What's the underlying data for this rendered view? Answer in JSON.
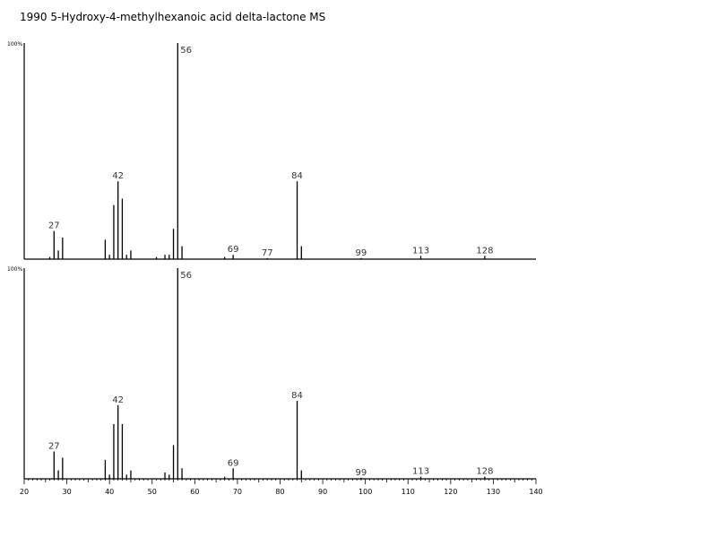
{
  "title": "1990 5-Hydroxy-4-methylhexanoic acid delta-lactone MS",
  "chart_data": [
    {
      "type": "bar",
      "name": "upper-spectrum",
      "ylabel": "100%",
      "xlim": [
        20,
        140
      ],
      "ylim": [
        0,
        100
      ],
      "x_ticks": [
        "20",
        "30",
        "40",
        "50",
        "60",
        "70",
        "80",
        "90",
        "100",
        "110",
        "120",
        "130",
        "140"
      ],
      "peaks": [
        {
          "x": 26,
          "y": 1
        },
        {
          "x": 27,
          "y": 13,
          "label": "27"
        },
        {
          "x": 28,
          "y": 4
        },
        {
          "x": 29,
          "y": 10
        },
        {
          "x": 39,
          "y": 9
        },
        {
          "x": 40,
          "y": 2
        },
        {
          "x": 41,
          "y": 25
        },
        {
          "x": 42,
          "y": 36,
          "label": "42"
        },
        {
          "x": 43,
          "y": 28
        },
        {
          "x": 44,
          "y": 2
        },
        {
          "x": 45,
          "y": 4
        },
        {
          "x": 51,
          "y": 1
        },
        {
          "x": 53,
          "y": 2
        },
        {
          "x": 54,
          "y": 2
        },
        {
          "x": 55,
          "y": 14
        },
        {
          "x": 56,
          "y": 100,
          "label": "56"
        },
        {
          "x": 57,
          "y": 6
        },
        {
          "x": 67,
          "y": 1
        },
        {
          "x": 69,
          "y": 2,
          "label": "69"
        },
        {
          "x": 77,
          "y": 0.5,
          "label": "77"
        },
        {
          "x": 84,
          "y": 36,
          "label": "84"
        },
        {
          "x": 85,
          "y": 6
        },
        {
          "x": 99,
          "y": 0.5,
          "label": "99"
        },
        {
          "x": 113,
          "y": 1.5,
          "label": "113"
        },
        {
          "x": 128,
          "y": 1.5,
          "label": "128"
        }
      ]
    },
    {
      "type": "bar",
      "name": "lower-spectrum",
      "ylabel": "100%",
      "xlim": [
        20,
        140
      ],
      "ylim": [
        0,
        100
      ],
      "x_ticks": [
        "20",
        "30",
        "40",
        "50",
        "60",
        "70",
        "80",
        "90",
        "100",
        "110",
        "120",
        "130",
        "140"
      ],
      "peaks": [
        {
          "x": 27,
          "y": 13,
          "label": "27"
        },
        {
          "x": 28,
          "y": 4
        },
        {
          "x": 29,
          "y": 10
        },
        {
          "x": 39,
          "y": 9
        },
        {
          "x": 40,
          "y": 2
        },
        {
          "x": 41,
          "y": 26
        },
        {
          "x": 42,
          "y": 35,
          "label": "42"
        },
        {
          "x": 43,
          "y": 26
        },
        {
          "x": 44,
          "y": 2
        },
        {
          "x": 45,
          "y": 4
        },
        {
          "x": 53,
          "y": 3
        },
        {
          "x": 54,
          "y": 2
        },
        {
          "x": 55,
          "y": 16
        },
        {
          "x": 56,
          "y": 100,
          "label": "56"
        },
        {
          "x": 57,
          "y": 5
        },
        {
          "x": 67,
          "y": 1
        },
        {
          "x": 69,
          "y": 5,
          "label": "69"
        },
        {
          "x": 84,
          "y": 37,
          "label": "84"
        },
        {
          "x": 85,
          "y": 4
        },
        {
          "x": 99,
          "y": 0.5,
          "label": "99"
        },
        {
          "x": 113,
          "y": 1,
          "label": "113"
        },
        {
          "x": 128,
          "y": 1,
          "label": "128"
        }
      ]
    }
  ]
}
